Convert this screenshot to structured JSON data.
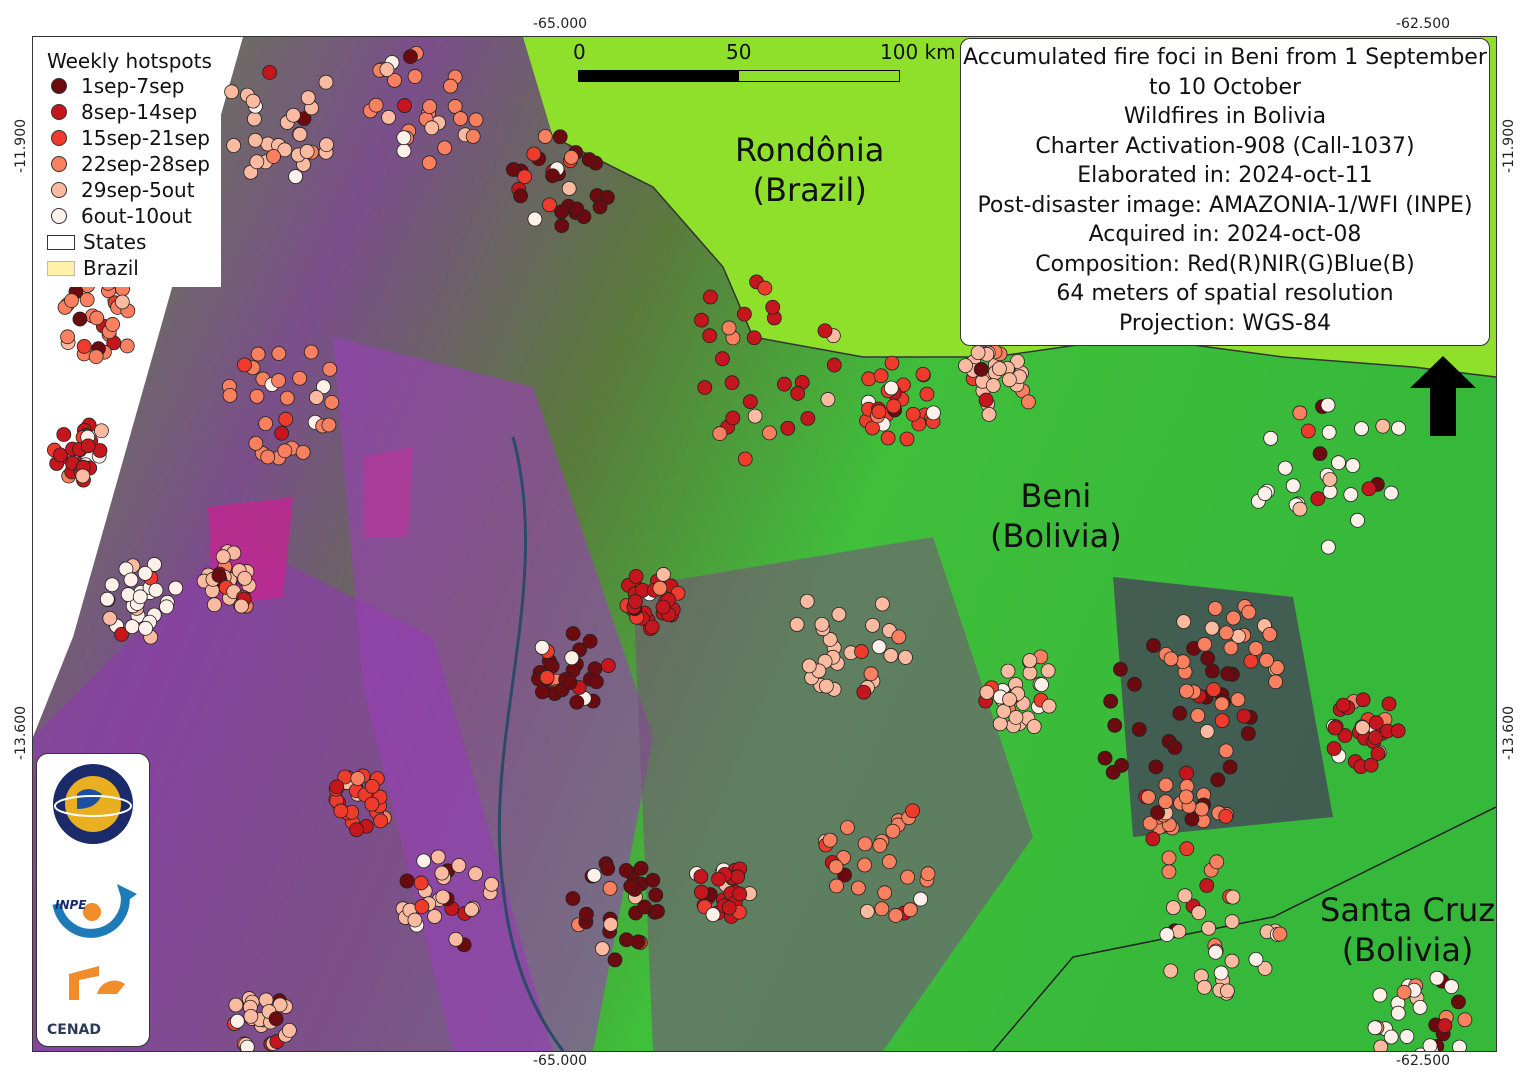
{
  "coordinates": {
    "lon_labels": [
      "-65.000",
      "-62.500"
    ],
    "lat_labels": [
      "-11.900",
      "-13.600"
    ]
  },
  "legend": {
    "title": "Weekly hotspots",
    "items": [
      {
        "label": "1sep-7sep",
        "color": "#6b0a0f"
      },
      {
        "label": "8sep-14sep",
        "color": "#c4161c"
      },
      {
        "label": "15sep-21sep",
        "color": "#ef3b2c"
      },
      {
        "label": "22sep-28sep",
        "color": "#fb8060"
      },
      {
        "label": "29sep-5out",
        "color": "#fcbba1"
      },
      {
        "label": "6out-10out",
        "color": "#fff0ea"
      }
    ],
    "states_label": "States",
    "brazil_label": "Brazil",
    "brazil_color": "#fff2a8"
  },
  "scale_bar": {
    "labels": [
      "0",
      "50",
      "100 km"
    ]
  },
  "info": {
    "lines": [
      "Accumulated fire foci in Beni from 1 September",
      "to 10 October",
      "Wildfires in Bolivia",
      "Charter Activation-908 (Call-1037)",
      "Elaborated in: 2024-oct-11",
      "Post-disaster image: AMAZONIA-1/WFI (INPE)",
      "Acquired in: 2024-oct-08",
      "Composition: Red(R)NIR(G)Blue(B)",
      "64 meters of spatial resolution",
      "Projection: WGS-84"
    ]
  },
  "places": {
    "rondonia": [
      "Rondônia",
      "(Brazil)"
    ],
    "beni": [
      "Beni",
      "(Bolivia)"
    ],
    "santa_cruz": [
      "Santa Cruz",
      "(Bolivia)"
    ]
  },
  "logos": {
    "charter": "International Charter Space & Major Disasters",
    "inpe": "INPE",
    "cenad": "CENAD"
  }
}
